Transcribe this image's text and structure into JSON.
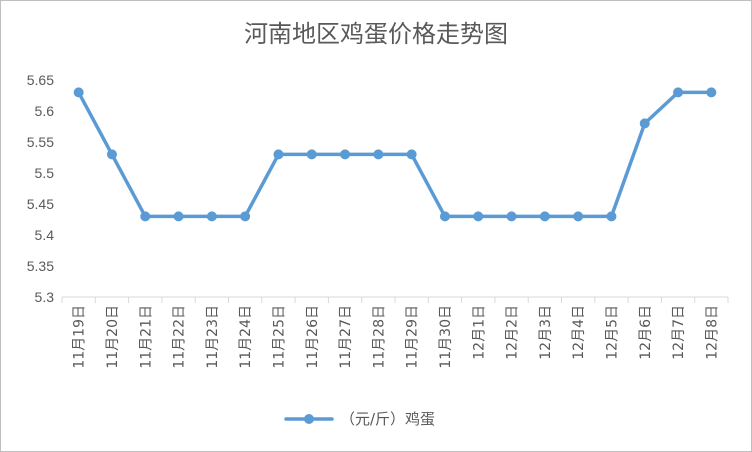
{
  "chart_data": {
    "type": "line",
    "title": "河南地区鸡蛋价格走势图",
    "categories": [
      "11月19日",
      "11月20日",
      "11月21日",
      "11月22日",
      "11月23日",
      "11月24日",
      "11月25日",
      "11月26日",
      "11月27日",
      "11月28日",
      "11月29日",
      "11月30日",
      "12月1日",
      "12月2日",
      "12月3日",
      "12月4日",
      "12月5日",
      "12月6日",
      "12月7日",
      "12月8日"
    ],
    "series": [
      {
        "name": "（元/斤）鸡蛋",
        "values": [
          5.63,
          5.53,
          5.43,
          5.43,
          5.43,
          5.43,
          5.53,
          5.53,
          5.53,
          5.53,
          5.53,
          5.43,
          5.43,
          5.43,
          5.43,
          5.43,
          5.43,
          5.58,
          5.63,
          5.63
        ],
        "color": "#5b9bd5"
      }
    ],
    "yticks": [
      "5.3",
      "5.35",
      "5.4",
      "5.45",
      "5.5",
      "5.55",
      "5.6",
      "5.65"
    ],
    "ylim": [
      5.3,
      5.65
    ],
    "xlabel": "",
    "ylabel": "",
    "grid": false,
    "legend": "bottom"
  }
}
